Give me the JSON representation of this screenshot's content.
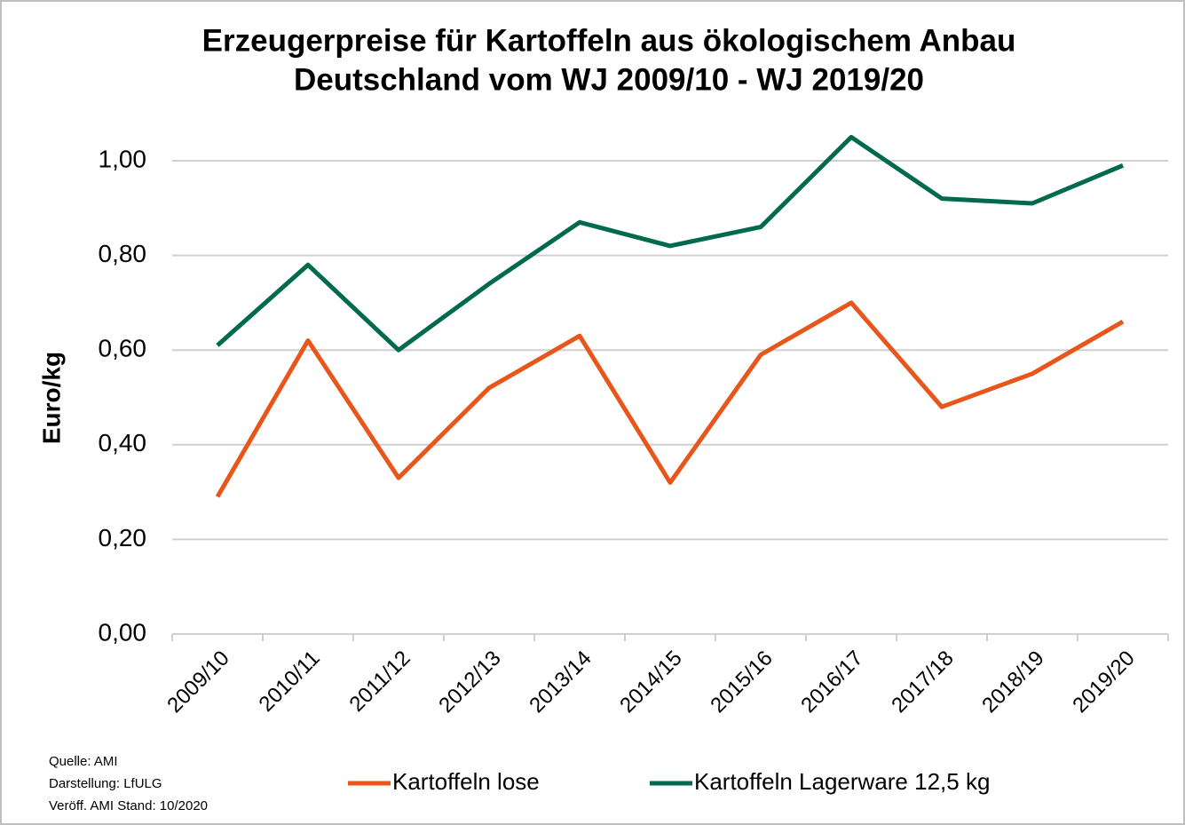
{
  "chart_data": {
    "type": "line",
    "title": [
      "Erzeugerpreise für Kartoffeln aus ökologischem Anbau",
      "Deutschland vom WJ 2009/10 - WJ 2019/20"
    ],
    "y_label": "Euro/kg",
    "notes": [
      "Quelle: AMI",
      "Darstellung: LfULG",
      "Veröff. AMI Stand: 10/2020"
    ],
    "categories": [
      "2009/10",
      "2010/11",
      "2011/12",
      "2012/13",
      "2013/14",
      "2014/15",
      "2015/16",
      "2016/17",
      "2017/18",
      "2018/19",
      "2019/20"
    ],
    "series": [
      {
        "name": "Kartoffeln lose",
        "color": "#e8561c",
        "values": [
          0.29,
          0.62,
          0.33,
          0.52,
          0.63,
          0.32,
          0.59,
          0.7,
          0.48,
          0.55,
          0.66
        ]
      },
      {
        "name": "Kartoffeln Lagerware 12,5 kg",
        "color": "#006a4e",
        "values": [
          0.61,
          0.78,
          0.6,
          0.74,
          0.87,
          0.82,
          0.86,
          1.05,
          0.92,
          0.91,
          0.99
        ]
      }
    ],
    "ylim": [
      0,
      1.1
    ],
    "yticks": [
      {
        "value": 0,
        "label": "0,00"
      },
      {
        "value": 0.2,
        "label": "0,20"
      },
      {
        "value": 0.4,
        "label": "0,40"
      },
      {
        "value": 0.6,
        "label": "0,60"
      },
      {
        "value": 0.8,
        "label": "0,80"
      },
      {
        "value": 1.0,
        "label": "1,00"
      }
    ],
    "grid": true,
    "legend": "bottom"
  }
}
